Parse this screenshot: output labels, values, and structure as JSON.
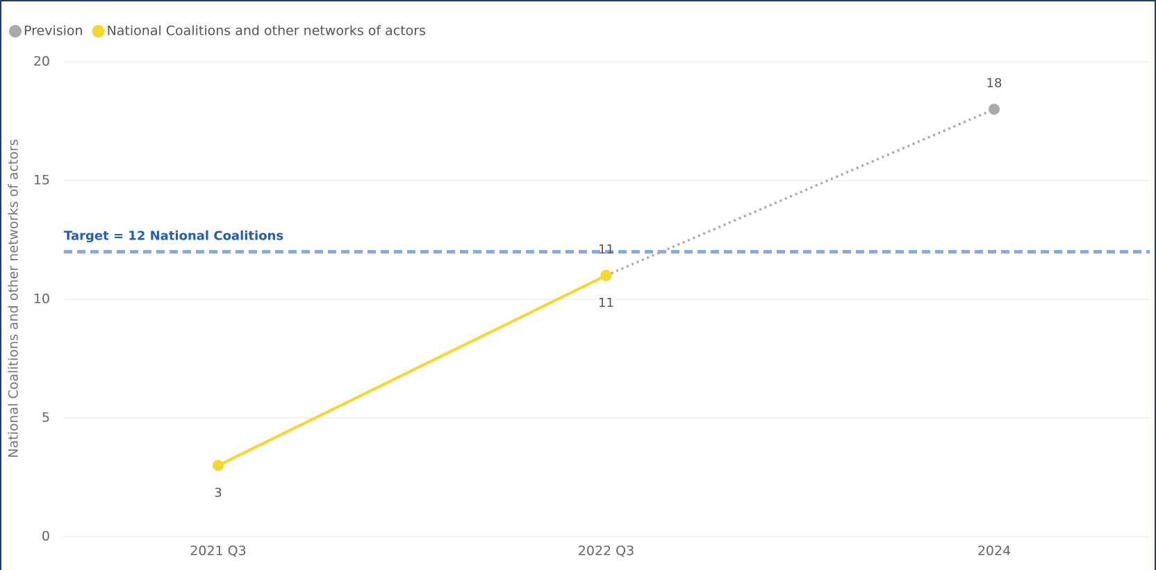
{
  "chart_data": {
    "type": "line",
    "y_axis_label": "National Coalitions and other networks of actors",
    "categories": [
      "2021 Q3",
      "2022 Q3",
      "2024"
    ],
    "series": [
      {
        "name": "Prevision",
        "color": "#aaaaaa",
        "dash": "dotted",
        "values": [
          null,
          11,
          18
        ]
      },
      {
        "name": "National Coalitions and other networks of actors",
        "color": "#f6d72c",
        "dash": "solid",
        "values": [
          3,
          11,
          null
        ]
      }
    ],
    "target": {
      "value": 12,
      "label": "Target = 12 National Coalitions",
      "color": "#88a9dc"
    },
    "ylim": [
      0,
      20
    ],
    "yticks": [
      0,
      5,
      10,
      15,
      20
    ],
    "grid": true,
    "legend": "top-left"
  }
}
